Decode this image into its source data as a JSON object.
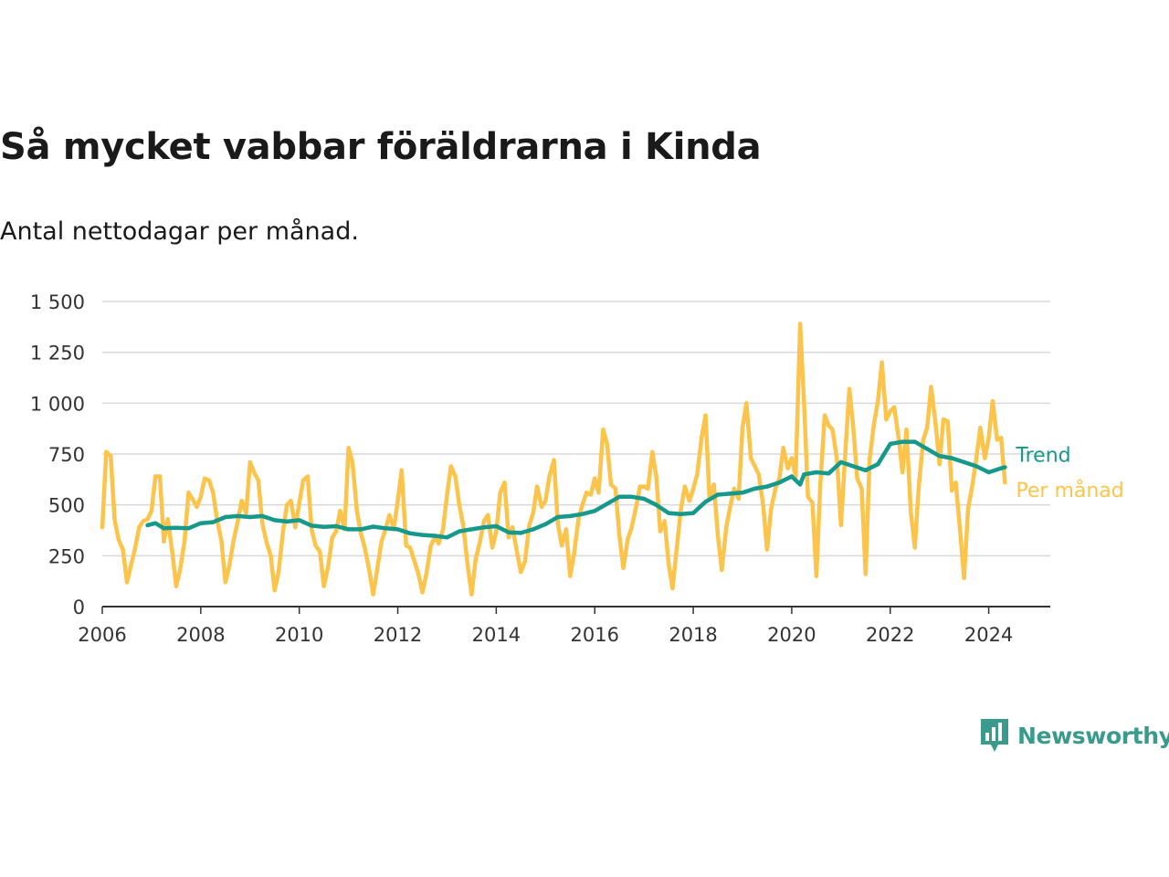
{
  "title": "Så mycket vabbar föräldrarna i Kinda",
  "subtitle": "Antal nettodagar per månad.",
  "brand": {
    "name": "Newsworthy",
    "icon": "newsworthy-chart-logo-icon"
  },
  "colors": {
    "monthly": "#fcc44b",
    "trend": "#16998a",
    "grid": "#d9d9d9",
    "axis": "#333333",
    "brand": "#3a9a8c"
  },
  "chart_data": {
    "type": "line",
    "xlim": [
      2006,
      2025.25
    ],
    "ylim": [
      0,
      1500
    ],
    "x_ticks": [
      {
        "value": 2006,
        "label": "2006"
      },
      {
        "value": 2008,
        "label": "2008"
      },
      {
        "value": 2010,
        "label": "2010"
      },
      {
        "value": 2012,
        "label": "2012"
      },
      {
        "value": 2014,
        "label": "2014"
      },
      {
        "value": 2016,
        "label": "2016"
      },
      {
        "value": 2018,
        "label": "2018"
      },
      {
        "value": 2020,
        "label": "2020"
      },
      {
        "value": 2022,
        "label": "2022"
      },
      {
        "value": 2024,
        "label": "2024"
      }
    ],
    "y_ticks": [
      {
        "value": 0,
        "label": "0"
      },
      {
        "value": 250,
        "label": "250"
      },
      {
        "value": 500,
        "label": "500"
      },
      {
        "value": 750,
        "label": "750"
      },
      {
        "value": 1000,
        "label": "1 000"
      },
      {
        "value": 1250,
        "label": "1 250"
      },
      {
        "value": 1500,
        "label": "1 500"
      }
    ],
    "grid": true,
    "series": [
      {
        "name": "Per månad",
        "values": [
          [
            2006.0,
            390
          ],
          [
            2006.08,
            760
          ],
          [
            2006.17,
            740
          ],
          [
            2006.25,
            430
          ],
          [
            2006.33,
            330
          ],
          [
            2006.42,
            280
          ],
          [
            2006.5,
            120
          ],
          [
            2006.58,
            200
          ],
          [
            2006.67,
            290
          ],
          [
            2006.75,
            390
          ],
          [
            2006.83,
            420
          ],
          [
            2006.92,
            430
          ],
          [
            2007.0,
            470
          ],
          [
            2007.08,
            640
          ],
          [
            2007.17,
            640
          ],
          [
            2007.25,
            320
          ],
          [
            2007.33,
            430
          ],
          [
            2007.42,
            270
          ],
          [
            2007.5,
            100
          ],
          [
            2007.58,
            180
          ],
          [
            2007.67,
            320
          ],
          [
            2007.75,
            560
          ],
          [
            2007.83,
            530
          ],
          [
            2007.92,
            490
          ],
          [
            2008.0,
            540
          ],
          [
            2008.08,
            630
          ],
          [
            2008.17,
            620
          ],
          [
            2008.25,
            560
          ],
          [
            2008.33,
            430
          ],
          [
            2008.42,
            320
          ],
          [
            2008.5,
            120
          ],
          [
            2008.58,
            200
          ],
          [
            2008.67,
            330
          ],
          [
            2008.75,
            420
          ],
          [
            2008.83,
            520
          ],
          [
            2008.92,
            460
          ],
          [
            2009.0,
            710
          ],
          [
            2009.08,
            660
          ],
          [
            2009.17,
            620
          ],
          [
            2009.25,
            410
          ],
          [
            2009.33,
            320
          ],
          [
            2009.42,
            250
          ],
          [
            2009.5,
            80
          ],
          [
            2009.58,
            170
          ],
          [
            2009.67,
            370
          ],
          [
            2009.75,
            500
          ],
          [
            2009.83,
            520
          ],
          [
            2009.92,
            390
          ],
          [
            2010.0,
            510
          ],
          [
            2010.08,
            620
          ],
          [
            2010.17,
            640
          ],
          [
            2010.25,
            380
          ],
          [
            2010.33,
            300
          ],
          [
            2010.42,
            270
          ],
          [
            2010.5,
            100
          ],
          [
            2010.58,
            190
          ],
          [
            2010.67,
            340
          ],
          [
            2010.75,
            370
          ],
          [
            2010.83,
            470
          ],
          [
            2010.92,
            380
          ],
          [
            2011.0,
            780
          ],
          [
            2011.08,
            710
          ],
          [
            2011.17,
            470
          ],
          [
            2011.25,
            360
          ],
          [
            2011.33,
            290
          ],
          [
            2011.42,
            180
          ],
          [
            2011.5,
            60
          ],
          [
            2011.58,
            180
          ],
          [
            2011.67,
            320
          ],
          [
            2011.75,
            380
          ],
          [
            2011.83,
            450
          ],
          [
            2011.92,
            380
          ],
          [
            2012.0,
            520
          ],
          [
            2012.08,
            670
          ],
          [
            2012.17,
            300
          ],
          [
            2012.25,
            290
          ],
          [
            2012.33,
            230
          ],
          [
            2012.42,
            160
          ],
          [
            2012.5,
            70
          ],
          [
            2012.58,
            160
          ],
          [
            2012.67,
            300
          ],
          [
            2012.75,
            340
          ],
          [
            2012.83,
            310
          ],
          [
            2012.92,
            380
          ],
          [
            2013.0,
            550
          ],
          [
            2013.08,
            690
          ],
          [
            2013.17,
            640
          ],
          [
            2013.25,
            500
          ],
          [
            2013.33,
            400
          ],
          [
            2013.42,
            200
          ],
          [
            2013.5,
            60
          ],
          [
            2013.58,
            230
          ],
          [
            2013.67,
            320
          ],
          [
            2013.75,
            420
          ],
          [
            2013.83,
            450
          ],
          [
            2013.92,
            290
          ],
          [
            2014.0,
            370
          ],
          [
            2014.08,
            560
          ],
          [
            2014.17,
            610
          ],
          [
            2014.25,
            340
          ],
          [
            2014.33,
            390
          ],
          [
            2014.42,
            270
          ],
          [
            2014.5,
            170
          ],
          [
            2014.58,
            220
          ],
          [
            2014.67,
            400
          ],
          [
            2014.75,
            460
          ],
          [
            2014.83,
            590
          ],
          [
            2014.92,
            490
          ],
          [
            2015.0,
            520
          ],
          [
            2015.08,
            640
          ],
          [
            2015.17,
            720
          ],
          [
            2015.25,
            410
          ],
          [
            2015.33,
            300
          ],
          [
            2015.42,
            380
          ],
          [
            2015.5,
            150
          ],
          [
            2015.58,
            260
          ],
          [
            2015.67,
            430
          ],
          [
            2015.75,
            500
          ],
          [
            2015.83,
            560
          ],
          [
            2015.92,
            550
          ],
          [
            2016.0,
            630
          ],
          [
            2016.08,
            560
          ],
          [
            2016.17,
            870
          ],
          [
            2016.25,
            800
          ],
          [
            2016.33,
            600
          ],
          [
            2016.42,
            580
          ],
          [
            2016.5,
            350
          ],
          [
            2016.58,
            190
          ],
          [
            2016.67,
            330
          ],
          [
            2016.75,
            390
          ],
          [
            2016.83,
            480
          ],
          [
            2016.92,
            590
          ],
          [
            2017.0,
            590
          ],
          [
            2017.08,
            580
          ],
          [
            2017.17,
            760
          ],
          [
            2017.25,
            640
          ],
          [
            2017.33,
            370
          ],
          [
            2017.42,
            420
          ],
          [
            2017.5,
            210
          ],
          [
            2017.58,
            90
          ],
          [
            2017.67,
            300
          ],
          [
            2017.75,
            480
          ],
          [
            2017.83,
            590
          ],
          [
            2017.92,
            520
          ],
          [
            2018.0,
            580
          ],
          [
            2018.08,
            650
          ],
          [
            2018.17,
            830
          ],
          [
            2018.25,
            940
          ],
          [
            2018.33,
            530
          ],
          [
            2018.42,
            600
          ],
          [
            2018.5,
            350
          ],
          [
            2018.58,
            180
          ],
          [
            2018.67,
            390
          ],
          [
            2018.75,
            490
          ],
          [
            2018.83,
            580
          ],
          [
            2018.92,
            530
          ],
          [
            2019.0,
            880
          ],
          [
            2019.08,
            1000
          ],
          [
            2019.17,
            730
          ],
          [
            2019.25,
            690
          ],
          [
            2019.33,
            650
          ],
          [
            2019.42,
            500
          ],
          [
            2019.5,
            280
          ],
          [
            2019.58,
            480
          ],
          [
            2019.67,
            580
          ],
          [
            2019.75,
            630
          ],
          [
            2019.83,
            780
          ],
          [
            2019.92,
            680
          ],
          [
            2020.0,
            730
          ],
          [
            2020.08,
            640
          ],
          [
            2020.17,
            1390
          ],
          [
            2020.25,
            1000
          ],
          [
            2020.33,
            540
          ],
          [
            2020.42,
            510
          ],
          [
            2020.5,
            150
          ],
          [
            2020.58,
            600
          ],
          [
            2020.67,
            940
          ],
          [
            2020.75,
            890
          ],
          [
            2020.83,
            870
          ],
          [
            2020.92,
            720
          ],
          [
            2021.0,
            400
          ],
          [
            2021.08,
            720
          ],
          [
            2021.17,
            1070
          ],
          [
            2021.25,
            880
          ],
          [
            2021.33,
            630
          ],
          [
            2021.42,
            580
          ],
          [
            2021.5,
            160
          ],
          [
            2021.58,
            720
          ],
          [
            2021.67,
            900
          ],
          [
            2021.75,
            1010
          ],
          [
            2021.83,
            1200
          ],
          [
            2021.92,
            920
          ],
          [
            2022.0,
            960
          ],
          [
            2022.08,
            980
          ],
          [
            2022.17,
            830
          ],
          [
            2022.25,
            660
          ],
          [
            2022.33,
            870
          ],
          [
            2022.42,
            460
          ],
          [
            2022.5,
            290
          ],
          [
            2022.58,
            590
          ],
          [
            2022.67,
            820
          ],
          [
            2022.75,
            880
          ],
          [
            2022.83,
            1080
          ],
          [
            2022.92,
            900
          ],
          [
            2023.0,
            700
          ],
          [
            2023.08,
            920
          ],
          [
            2023.17,
            910
          ],
          [
            2023.25,
            570
          ],
          [
            2023.33,
            610
          ],
          [
            2023.42,
            370
          ],
          [
            2023.5,
            140
          ],
          [
            2023.58,
            480
          ],
          [
            2023.67,
            600
          ],
          [
            2023.75,
            730
          ],
          [
            2023.83,
            880
          ],
          [
            2023.92,
            730
          ],
          [
            2024.0,
            830
          ],
          [
            2024.08,
            1010
          ],
          [
            2024.17,
            820
          ],
          [
            2024.25,
            830
          ],
          [
            2024.33,
            610
          ]
        ]
      },
      {
        "name": "Trend",
        "values": [
          [
            2006.92,
            400
          ],
          [
            2007.08,
            410
          ],
          [
            2007.25,
            385
          ],
          [
            2007.5,
            387
          ],
          [
            2007.75,
            385
          ],
          [
            2008.0,
            410
          ],
          [
            2008.25,
            415
          ],
          [
            2008.5,
            440
          ],
          [
            2008.75,
            445
          ],
          [
            2009.0,
            440
          ],
          [
            2009.25,
            445
          ],
          [
            2009.5,
            425
          ],
          [
            2009.75,
            418
          ],
          [
            2010.0,
            425
          ],
          [
            2010.25,
            398
          ],
          [
            2010.5,
            392
          ],
          [
            2010.75,
            395
          ],
          [
            2011.0,
            380
          ],
          [
            2011.25,
            380
          ],
          [
            2011.5,
            393
          ],
          [
            2011.75,
            385
          ],
          [
            2012.0,
            380
          ],
          [
            2012.25,
            360
          ],
          [
            2012.5,
            352
          ],
          [
            2012.75,
            348
          ],
          [
            2013.0,
            340
          ],
          [
            2013.25,
            370
          ],
          [
            2013.5,
            380
          ],
          [
            2013.75,
            390
          ],
          [
            2014.0,
            395
          ],
          [
            2014.25,
            365
          ],
          [
            2014.5,
            362
          ],
          [
            2014.75,
            380
          ],
          [
            2015.0,
            405
          ],
          [
            2015.25,
            440
          ],
          [
            2015.5,
            445
          ],
          [
            2015.75,
            455
          ],
          [
            2016.0,
            470
          ],
          [
            2016.25,
            505
          ],
          [
            2016.5,
            540
          ],
          [
            2016.75,
            540
          ],
          [
            2017.0,
            530
          ],
          [
            2017.25,
            500
          ],
          [
            2017.5,
            460
          ],
          [
            2017.75,
            455
          ],
          [
            2018.0,
            460
          ],
          [
            2018.25,
            515
          ],
          [
            2018.5,
            550
          ],
          [
            2018.75,
            555
          ],
          [
            2019.0,
            560
          ],
          [
            2019.25,
            580
          ],
          [
            2019.5,
            590
          ],
          [
            2019.75,
            610
          ],
          [
            2020.0,
            640
          ],
          [
            2020.17,
            600
          ],
          [
            2020.25,
            650
          ],
          [
            2020.5,
            660
          ],
          [
            2020.75,
            655
          ],
          [
            2021.0,
            710
          ],
          [
            2021.25,
            690
          ],
          [
            2021.5,
            670
          ],
          [
            2021.75,
            700
          ],
          [
            2022.0,
            800
          ],
          [
            2022.25,
            810
          ],
          [
            2022.5,
            810
          ],
          [
            2022.75,
            775
          ],
          [
            2023.0,
            740
          ],
          [
            2023.25,
            730
          ],
          [
            2023.5,
            710
          ],
          [
            2023.75,
            690
          ],
          [
            2024.0,
            660
          ],
          [
            2024.25,
            680
          ],
          [
            2024.33,
            685
          ]
        ]
      }
    ]
  }
}
